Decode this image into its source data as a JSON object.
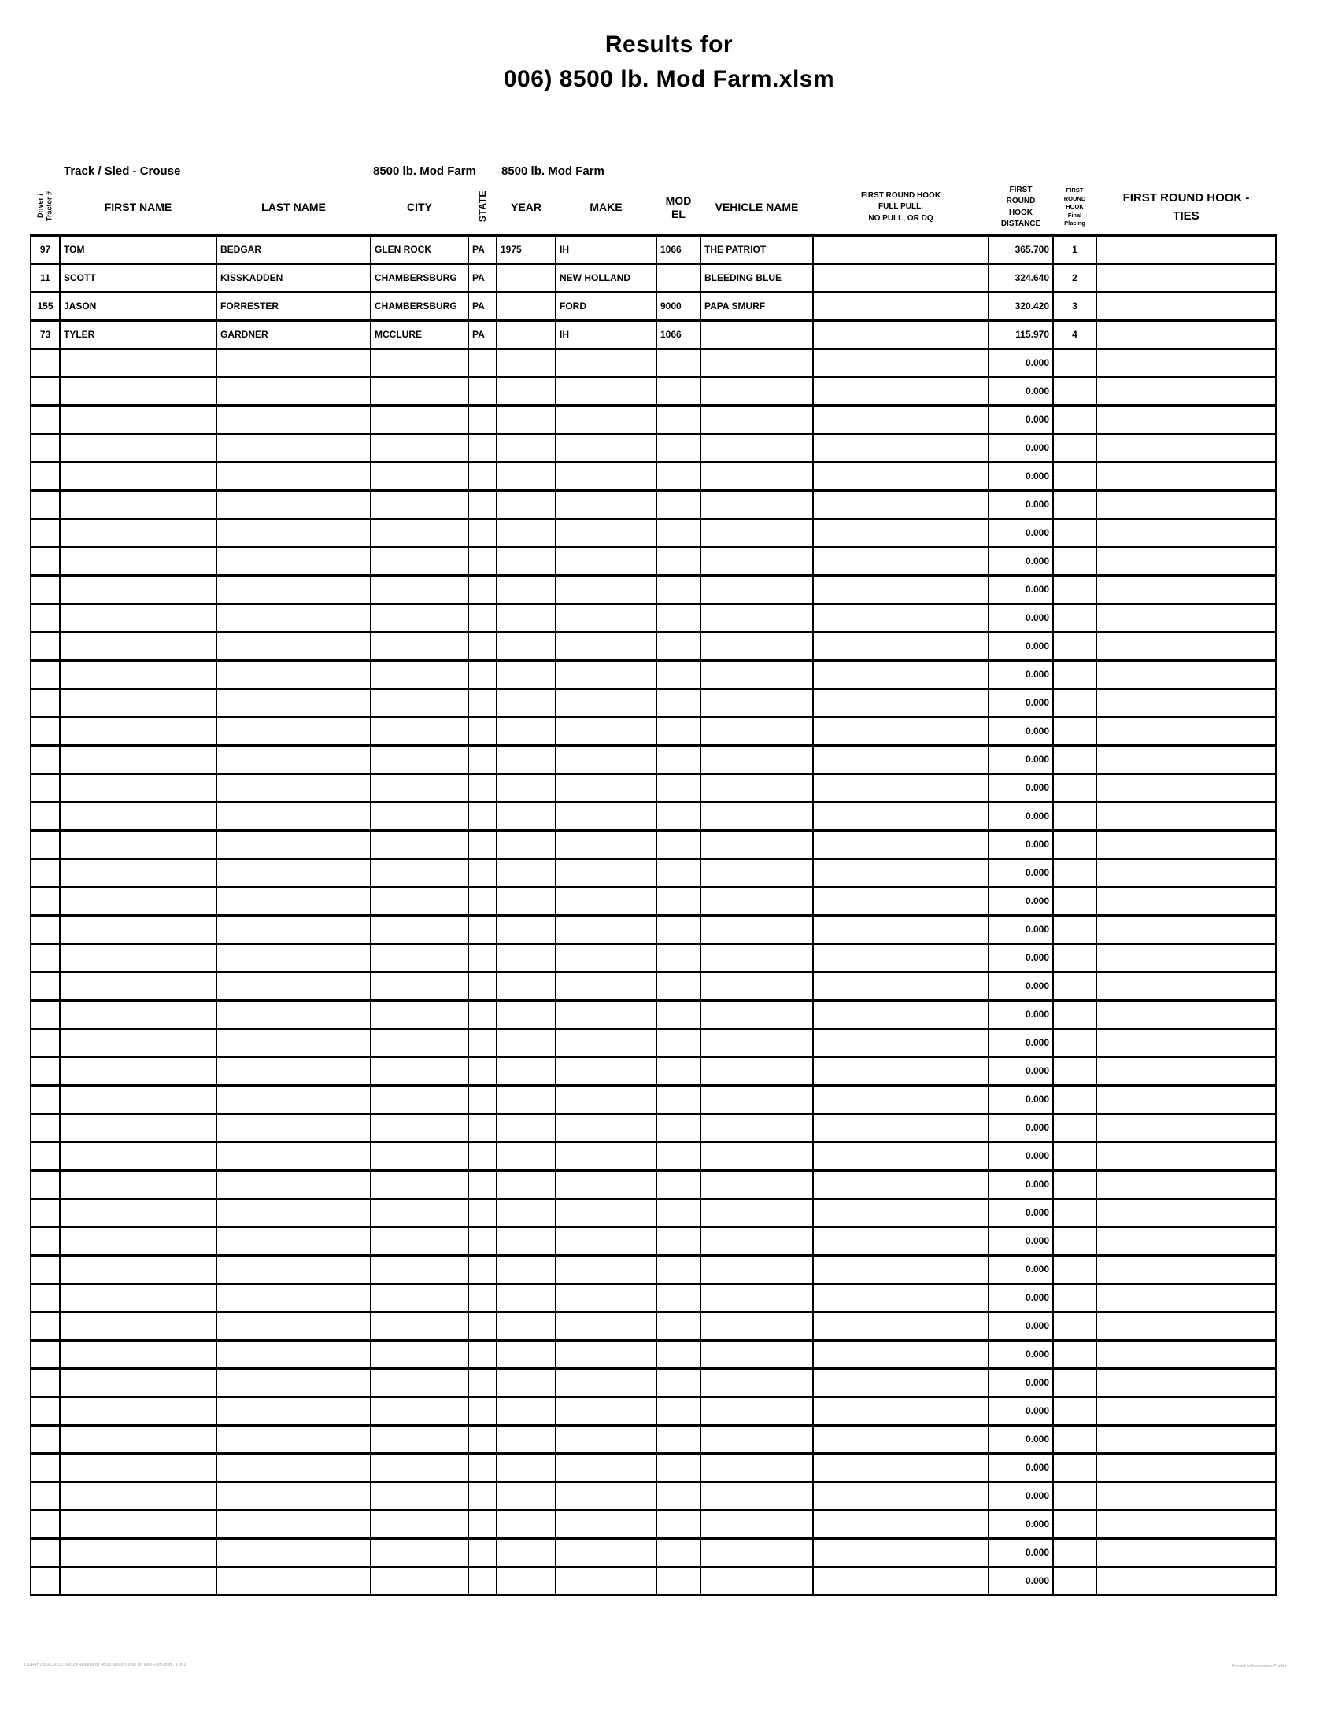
{
  "title": {
    "line1": "Results for",
    "line2": "006) 8500 lb. Mod Farm.xlsm"
  },
  "meta": {
    "track_sled": "Track / Sled - Crouse",
    "event_name_clipped": "8500 lb. Mod Farm",
    "event_name": "8500 lb. Mod Farm"
  },
  "table": {
    "headers": {
      "driver": "Driver /\nTractor #",
      "first_name": "FIRST NAME",
      "last_name": "LAST NAME",
      "city": "CITY",
      "state": "STATE",
      "year": "YEAR",
      "make": "MAKE",
      "model": "MOD\nEL",
      "vehicle_name": "VEHICLE NAME",
      "full_pull": "FIRST ROUND HOOK\nFULL PULL,\nNO PULL, OR DQ",
      "distance": "FIRST\nROUND\nHOOK\nDISTANCE",
      "placing": "FIRST\nROUND\nHOOK\nFinal\nPlacing",
      "ties": "FIRST ROUND HOOK -\nTIES"
    },
    "rows": [
      [
        "97",
        "TOM",
        "BEDGAR",
        "GLEN ROCK",
        "PA",
        "1975",
        "IH",
        "1066",
        "THE PATRIOT",
        "",
        "365.700",
        "1",
        ""
      ],
      [
        "11",
        "SCOTT",
        "KISSKADDEN",
        "CHAMBERSBURG",
        "PA",
        "",
        "NEW HOLLAND",
        "",
        "BLEEDING BLUE",
        "",
        "324.640",
        "2",
        ""
      ],
      [
        "155",
        "JASON",
        "FORRESTER",
        "CHAMBERSBURG",
        "PA",
        "",
        "FORD",
        "9000",
        "PAPA SMURF",
        "",
        "320.420",
        "3",
        ""
      ],
      [
        "73",
        "TYLER",
        "GARDNER",
        "MCCLURE",
        "PA",
        "",
        "IH",
        "1066",
        "",
        "",
        "115.970",
        "4",
        ""
      ]
    ],
    "empty_row_count": 44,
    "empty_row_cells": [
      "",
      "",
      "",
      "",
      "",
      "",
      "",
      "",
      "",
      "",
      "0.000",
      "",
      ""
    ]
  },
  "footer": {
    "left": "TJDR4H1900-CVx10.6/2019/ResultsList 4of2019/006) 8500 lb. Mod Farm.xlsm, 1 of 1",
    "right": "Printed with xxxxxxxx Printer"
  }
}
